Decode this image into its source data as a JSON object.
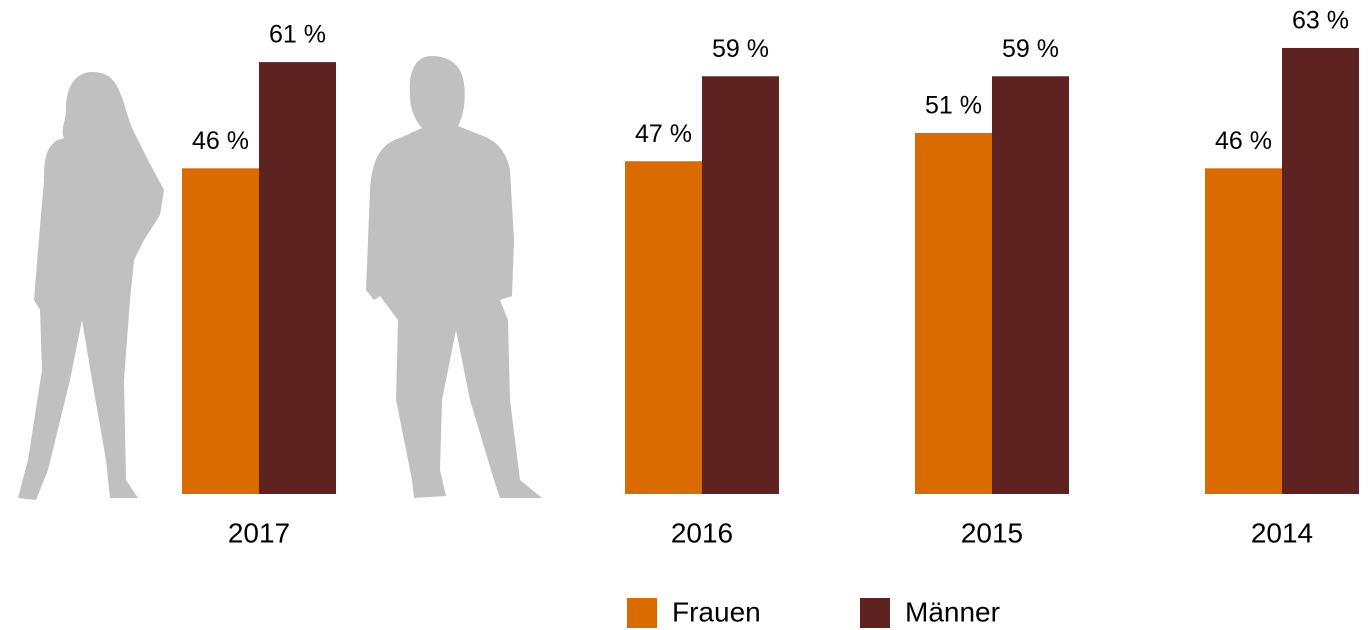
{
  "chart_data": {
    "type": "bar",
    "categories": [
      "2017",
      "2016",
      "2015",
      "2014"
    ],
    "series": [
      {
        "name": "Frauen",
        "color": "#d96b00",
        "values": [
          46,
          47,
          51,
          46
        ],
        "value_labels": [
          "46 %",
          "47 %",
          "51 %",
          "46 %"
        ]
      },
      {
        "name": "Männer",
        "color": "#5e2220",
        "values": [
          61,
          59,
          59,
          63
        ],
        "value_labels": [
          "61 %",
          "59 %",
          "59 %",
          "63 %"
        ]
      }
    ]
  }
}
